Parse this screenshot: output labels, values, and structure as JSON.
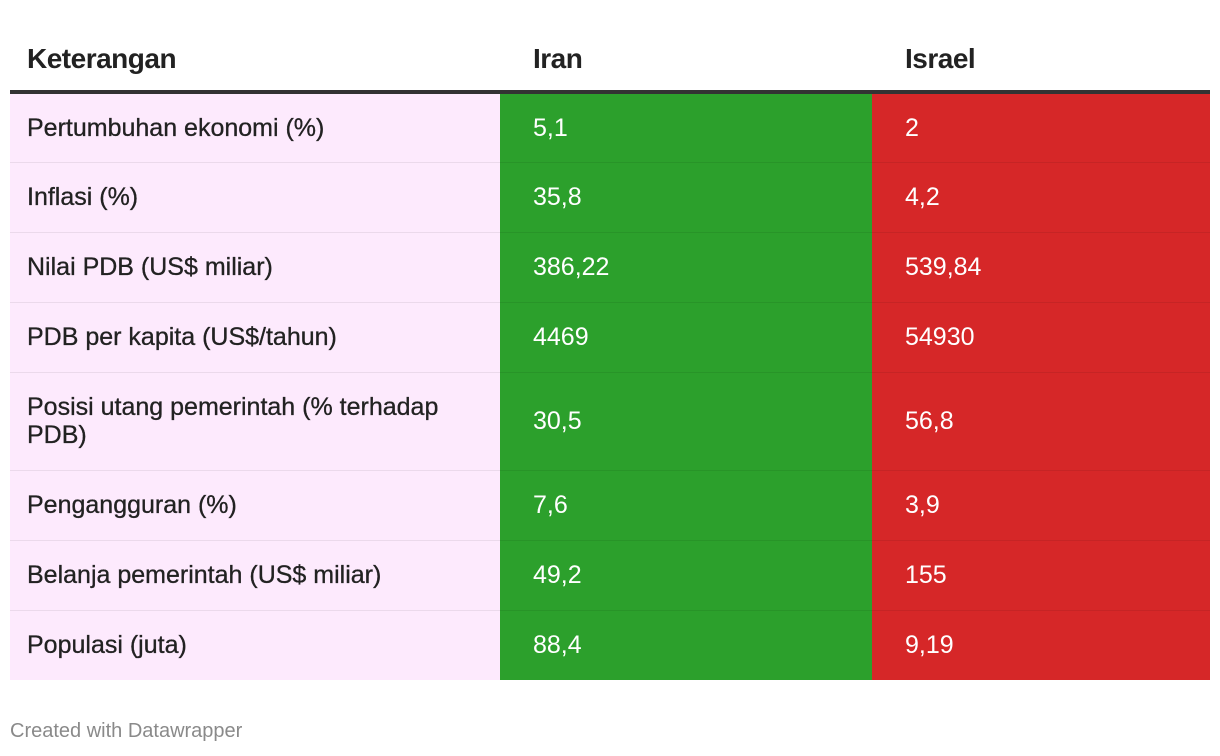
{
  "colors": {
    "label_bg": "#fdeafd",
    "iran_bg": "#2ca02c",
    "israel_bg": "#d62728"
  },
  "chart_data": {
    "type": "table",
    "columns": [
      "Keterangan",
      "Iran",
      "Israel"
    ],
    "rows": [
      {
        "label": "Pertumbuhan ekonomi (%)",
        "iran": "5,1",
        "israel": "2"
      },
      {
        "label": "Inflasi (%)",
        "iran": "35,8",
        "israel": "4,2"
      },
      {
        "label": "Nilai PDB (US$ miliar)",
        "iran": "386,22",
        "israel": "539,84"
      },
      {
        "label": "PDB per kapita (US$/tahun)",
        "iran": "4469",
        "israel": "54930"
      },
      {
        "label": "Posisi utang pemerintah (% terhadap PDB)",
        "iran": "30,5",
        "israel": "56,8"
      },
      {
        "label": "Pengangguran (%)",
        "iran": "7,6",
        "israel": "3,9"
      },
      {
        "label": "Belanja pemerintah (US$ miliar)",
        "iran": "49,2",
        "israel": "155"
      },
      {
        "label": "Populasi (juta)",
        "iran": "88,4",
        "israel": "9,19"
      }
    ]
  },
  "footer": {
    "credit": "Created with Datawrapper"
  }
}
